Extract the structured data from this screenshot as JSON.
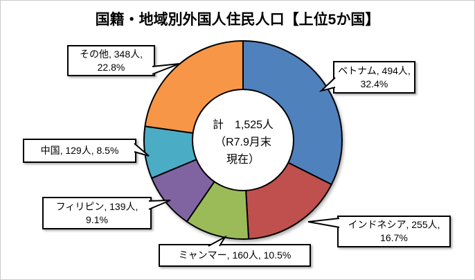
{
  "title": "国籍・地域別外国人住民人口【上位5か国】",
  "chart_data": {
    "type": "pie",
    "subtype": "donut",
    "title": "国籍・地域別外国人住民人口【上位5か国】",
    "unit": "人",
    "total_label": "計　1,525人（R7.9月末現在）",
    "total_value": 1525,
    "direction": "clockwise",
    "start_angle_deg": 0,
    "legend_position": "none",
    "segments": [
      {
        "label": "ベトナム",
        "value": 494,
        "pct": 32.4,
        "color": "#4F81BD"
      },
      {
        "label": "インドネシア",
        "value": 255,
        "pct": 16.7,
        "color": "#C0504D"
      },
      {
        "label": "ミャンマー",
        "value": 160,
        "pct": 10.5,
        "color": "#9BBB59"
      },
      {
        "label": "フィリピン",
        "value": 139,
        "pct": 9.1,
        "color": "#8064A2"
      },
      {
        "label": "中国",
        "value": 129,
        "pct": 8.5,
        "color": "#4BACC6"
      },
      {
        "label": "その他",
        "value": 348,
        "pct": 22.8,
        "color": "#F79646"
      }
    ]
  },
  "center_label": {
    "line1": "計　1,525人",
    "line2": "（R7.9月末",
    "line3": "現在）"
  },
  "callouts": {
    "vietnam": {
      "line1": "ベトナム, 494人,",
      "line2": "32.4%"
    },
    "indonesia": {
      "line1": "インドネシア, 255人,",
      "line2": "16.7%"
    },
    "myanmar": {
      "line1": "ミャンマー, 160人, 10.5%"
    },
    "philippines": {
      "line1": "フィリピン, 139人,",
      "line2": "9.1%"
    },
    "china": {
      "line1": "中国, 129人, 8.5%"
    },
    "others": {
      "line1": "その他, 348人,",
      "line2": "22.8%"
    }
  }
}
